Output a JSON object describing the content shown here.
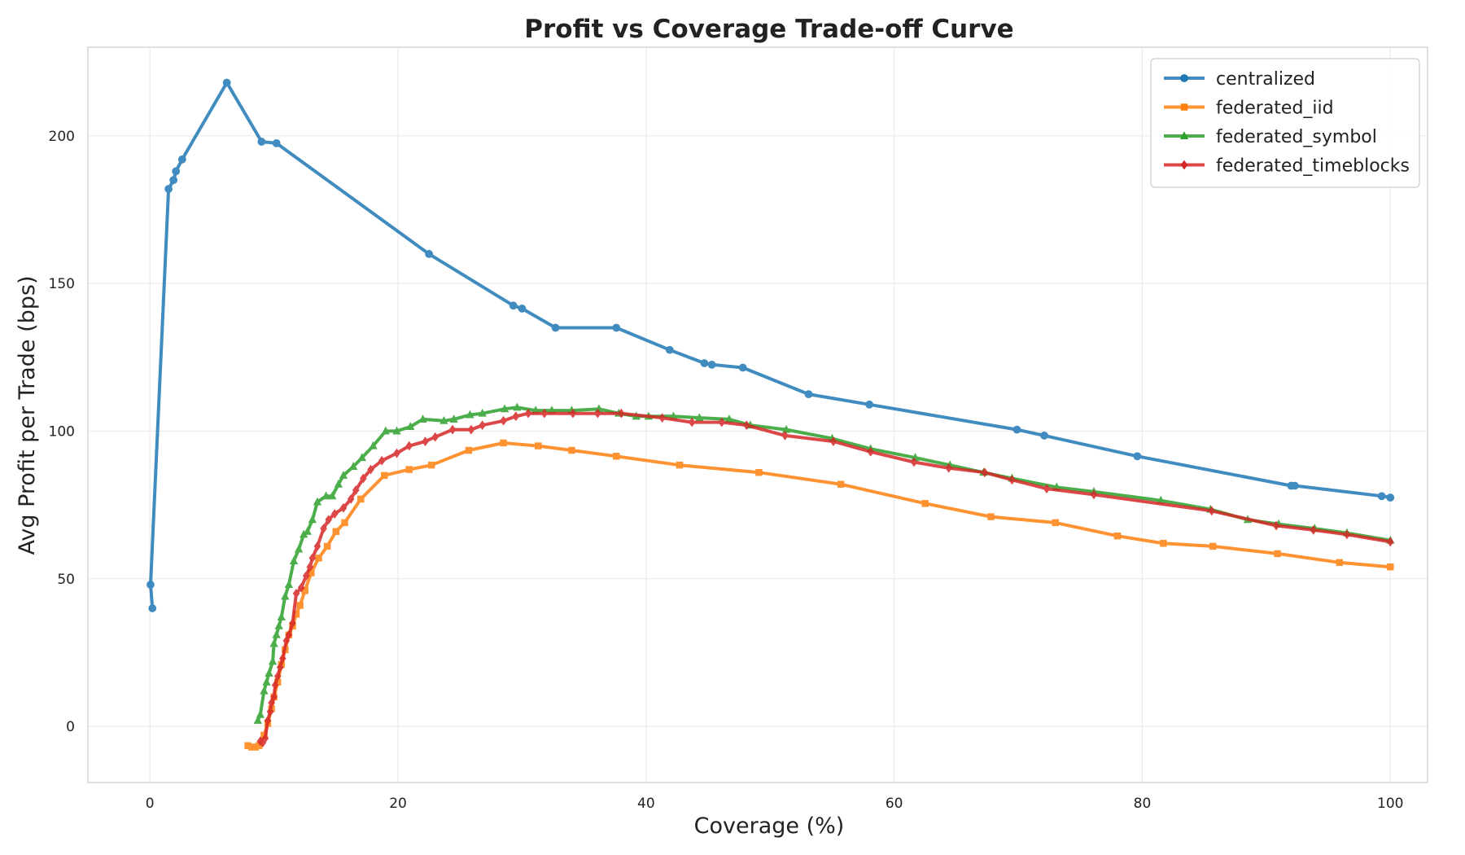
{
  "chart_data": {
    "type": "line",
    "title": "Profit vs Coverage Trade-off Curve",
    "xlabel": "Coverage (%)",
    "ylabel": "Avg Profit per Trade (bps)",
    "xlim": [
      -5,
      103
    ],
    "ylim": [
      -19,
      230
    ],
    "xticks": [
      0,
      20,
      40,
      60,
      80,
      100
    ],
    "yticks": [
      0,
      50,
      100,
      150,
      200
    ],
    "grid": true,
    "legend_position": "top-right",
    "series": [
      {
        "name": "centralized",
        "color": "#1f77b4",
        "marker": "circle",
        "points": [
          [
            0.2,
            40
          ],
          [
            0.05,
            48
          ],
          [
            1.5,
            182
          ],
          [
            1.9,
            185
          ],
          [
            2.1,
            188
          ],
          [
            2.6,
            192
          ],
          [
            6.2,
            218
          ],
          [
            9.0,
            198
          ],
          [
            10.2,
            197.5
          ],
          [
            22.5,
            160
          ],
          [
            29.3,
            142.5
          ],
          [
            30.0,
            141.5
          ],
          [
            32.7,
            135
          ],
          [
            37.6,
            135
          ],
          [
            41.9,
            127.5
          ],
          [
            44.7,
            123
          ],
          [
            45.3,
            122.5
          ],
          [
            47.8,
            121.5
          ],
          [
            53.1,
            112.5
          ],
          [
            58.0,
            109
          ],
          [
            69.9,
            100.5
          ],
          [
            72.1,
            98.5
          ],
          [
            79.6,
            91.5
          ],
          [
            92.0,
            81.5
          ],
          [
            92.3,
            81.5
          ],
          [
            99.3,
            78
          ],
          [
            100,
            77.5
          ]
        ]
      },
      {
        "name": "federated_iid",
        "color": "#ff7f0e",
        "marker": "square",
        "points": [
          [
            7.9,
            -6.5
          ],
          [
            8.2,
            -7
          ],
          [
            8.5,
            -7
          ],
          [
            8.8,
            -6.5
          ],
          [
            9.2,
            -3
          ],
          [
            9.5,
            1
          ],
          [
            9.8,
            6
          ],
          [
            10.0,
            10
          ],
          [
            10.3,
            15
          ],
          [
            10.6,
            21
          ],
          [
            10.9,
            26
          ],
          [
            11.2,
            31
          ],
          [
            11.5,
            34
          ],
          [
            11.8,
            38
          ],
          [
            12.1,
            41
          ],
          [
            12.5,
            46
          ],
          [
            13.0,
            52
          ],
          [
            13.6,
            57
          ],
          [
            14.3,
            61
          ],
          [
            15.0,
            66
          ],
          [
            15.7,
            69
          ],
          [
            17.0,
            77
          ],
          [
            18.9,
            85
          ],
          [
            20.9,
            87
          ],
          [
            22.7,
            88.5
          ],
          [
            25.7,
            93.5
          ],
          [
            28.5,
            96
          ],
          [
            31.3,
            95
          ],
          [
            34.0,
            93.5
          ],
          [
            37.6,
            91.5
          ],
          [
            42.7,
            88.5
          ],
          [
            49.1,
            86
          ],
          [
            55.7,
            82
          ],
          [
            62.5,
            75.5
          ],
          [
            67.8,
            71
          ],
          [
            73.0,
            69
          ],
          [
            78.0,
            64.5
          ],
          [
            81.7,
            62
          ],
          [
            85.7,
            61
          ],
          [
            90.9,
            58.5
          ],
          [
            95.9,
            55.5
          ],
          [
            100,
            54
          ]
        ]
      },
      {
        "name": "federated_symbol",
        "color": "#2ca02c",
        "marker": "triangle",
        "points": [
          [
            8.7,
            2
          ],
          [
            8.9,
            4
          ],
          [
            9.2,
            12
          ],
          [
            9.4,
            15
          ],
          [
            9.6,
            18
          ],
          [
            9.9,
            22
          ],
          [
            10.0,
            28
          ],
          [
            10.2,
            31
          ],
          [
            10.4,
            34
          ],
          [
            10.6,
            37
          ],
          [
            10.9,
            44
          ],
          [
            11.2,
            48
          ],
          [
            11.6,
            56
          ],
          [
            12.0,
            60
          ],
          [
            12.4,
            65
          ],
          [
            12.7,
            66
          ],
          [
            13.1,
            70
          ],
          [
            13.5,
            76
          ],
          [
            14.2,
            78
          ],
          [
            14.7,
            78
          ],
          [
            15.2,
            82
          ],
          [
            15.6,
            85
          ],
          [
            16.4,
            88
          ],
          [
            17.1,
            91
          ],
          [
            18.0,
            95
          ],
          [
            19.0,
            100
          ],
          [
            19.9,
            100
          ],
          [
            21.0,
            101.5
          ],
          [
            22.0,
            104
          ],
          [
            23.7,
            103.5
          ],
          [
            24.5,
            104
          ],
          [
            25.8,
            105.5
          ],
          [
            26.8,
            106
          ],
          [
            28.6,
            107.5
          ],
          [
            29.6,
            108
          ],
          [
            31.1,
            107
          ],
          [
            32.4,
            107
          ],
          [
            34.0,
            107
          ],
          [
            36.2,
            107.5
          ],
          [
            37.8,
            106
          ],
          [
            39.2,
            105
          ],
          [
            40.2,
            105
          ],
          [
            42.2,
            105
          ],
          [
            44.3,
            104.5
          ],
          [
            46.7,
            104
          ],
          [
            48.4,
            102
          ],
          [
            51.3,
            100.5
          ],
          [
            55.0,
            97.5
          ],
          [
            58.1,
            94
          ],
          [
            61.7,
            91
          ],
          [
            64.5,
            88.5
          ],
          [
            67.2,
            86
          ],
          [
            69.5,
            84
          ],
          [
            73.1,
            81
          ],
          [
            76.1,
            79.5
          ],
          [
            81.5,
            76.5
          ],
          [
            85.5,
            73.5
          ],
          [
            88.5,
            70
          ],
          [
            91.0,
            68.5
          ],
          [
            93.9,
            67
          ],
          [
            96.5,
            65.5
          ],
          [
            100,
            63
          ]
        ]
      },
      {
        "name": "federated_timeblocks",
        "color": "#d62728",
        "marker": "diamond",
        "points": [
          [
            8.9,
            -5
          ],
          [
            9.1,
            -5.5
          ],
          [
            9.3,
            -4
          ],
          [
            9.5,
            2
          ],
          [
            9.7,
            5
          ],
          [
            9.8,
            8
          ],
          [
            10.0,
            10
          ],
          [
            10.1,
            14
          ],
          [
            10.3,
            17
          ],
          [
            10.5,
            20
          ],
          [
            10.7,
            23
          ],
          [
            11.0,
            29
          ],
          [
            11.2,
            31
          ],
          [
            11.5,
            35
          ],
          [
            11.8,
            45
          ],
          [
            12.2,
            47
          ],
          [
            12.6,
            51
          ],
          [
            12.9,
            54
          ],
          [
            13.1,
            57
          ],
          [
            13.5,
            61
          ],
          [
            14.0,
            67
          ],
          [
            14.4,
            70
          ],
          [
            14.9,
            72
          ],
          [
            15.6,
            74
          ],
          [
            16.2,
            77
          ],
          [
            16.6,
            80
          ],
          [
            17.2,
            84
          ],
          [
            17.8,
            87
          ],
          [
            18.7,
            90
          ],
          [
            19.9,
            92.5
          ],
          [
            20.9,
            95
          ],
          [
            22.2,
            96.5
          ],
          [
            23.0,
            98
          ],
          [
            24.4,
            100.5
          ],
          [
            25.9,
            100.5
          ],
          [
            26.8,
            102
          ],
          [
            28.5,
            103.5
          ],
          [
            29.5,
            105
          ],
          [
            30.5,
            106
          ],
          [
            31.8,
            106
          ],
          [
            34.1,
            106
          ],
          [
            36.1,
            106
          ],
          [
            38.0,
            106
          ],
          [
            41.3,
            104.5
          ],
          [
            43.7,
            103
          ],
          [
            46.1,
            103
          ],
          [
            48.1,
            102
          ],
          [
            51.2,
            98.5
          ],
          [
            55.1,
            96.5
          ],
          [
            58.1,
            93
          ],
          [
            61.6,
            89.5
          ],
          [
            64.4,
            87.5
          ],
          [
            67.3,
            86
          ],
          [
            69.5,
            83.5
          ],
          [
            72.3,
            80.5
          ],
          [
            76.1,
            78.5
          ],
          [
            85.6,
            73
          ],
          [
            90.8,
            68
          ],
          [
            93.8,
            66.5
          ],
          [
            96.5,
            65
          ],
          [
            100,
            62.5
          ]
        ]
      }
    ]
  }
}
